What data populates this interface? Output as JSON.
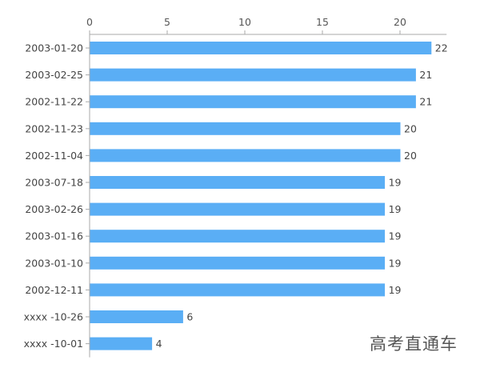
{
  "chart_data": {
    "type": "bar",
    "orientation": "horizontal",
    "categories": [
      "2003-01-20",
      "2003-02-25",
      "2002-11-22",
      "2002-11-23",
      "2002-11-04",
      "2003-07-18",
      "2003-02-26",
      "2003-01-16",
      "2003-01-10",
      "2002-12-11",
      "xxxx -10-26",
      "xxxx -10-01"
    ],
    "values": [
      22,
      21,
      21,
      20,
      20,
      19,
      19,
      19,
      19,
      19,
      6,
      4
    ],
    "xlim": [
      0,
      23
    ],
    "xticks": [
      0,
      5,
      10,
      15,
      20
    ],
    "axis_position": "top",
    "grid": false,
    "data_labels": true,
    "bar_color": "#5aaef5",
    "title": "",
    "xlabel": "",
    "ylabel": ""
  },
  "watermark": "高考直通车"
}
